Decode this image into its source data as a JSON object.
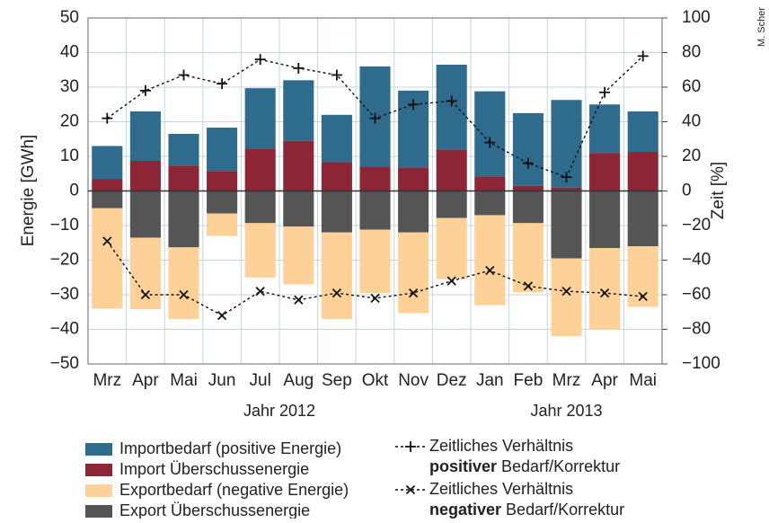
{
  "chart_data": {
    "type": "bar",
    "categories": [
      "Mrz",
      "Apr",
      "Mai",
      "Jun",
      "Jul",
      "Aug",
      "Sep",
      "Okt",
      "Nov",
      "Dez",
      "Jan",
      "Feb",
      "Mrz",
      "Apr",
      "Mai"
    ],
    "x_groups": [
      "Jahr 2012",
      "Jahr 2013"
    ],
    "ylabel": "Energie [GWh]",
    "y2label": "Zeit [%]",
    "credit": "M. Scher",
    "ylim": [
      -50,
      50
    ],
    "yticks": [
      {
        "value": -50,
        "label": "−50"
      },
      {
        "value": -40,
        "label": "−40"
      },
      {
        "value": -30,
        "label": "−30"
      },
      {
        "value": -20,
        "label": "−20"
      },
      {
        "value": -10,
        "label": "−10"
      },
      0,
      10,
      20,
      30,
      40,
      50
    ],
    "y2lim": [
      -100,
      100
    ],
    "y2ticks": [
      {
        "value": -100,
        "label": "−100"
      },
      {
        "value": -80,
        "label": "−80"
      },
      {
        "value": -60,
        "label": "−60"
      },
      {
        "value": -40,
        "label": "−40"
      },
      {
        "value": -20,
        "label": "−20"
      },
      0,
      20,
      40,
      60,
      80,
      100
    ],
    "grid": true,
    "series": [
      {
        "name": "Importbedarf (positive Energie)",
        "color": "#2f6b8c",
        "values": [
          9.5,
          14.3,
          9.2,
          12.5,
          17.4,
          17.5,
          13.7,
          29,
          22.2,
          24.5,
          24.6,
          21,
          25.3,
          14,
          11.7
        ]
      },
      {
        "name": "Import Überschussenergie",
        "color": "#8c2535",
        "values": [
          3.5,
          8.7,
          7.3,
          5.8,
          12.3,
          14.5,
          8.3,
          7,
          6.8,
          12,
          4.2,
          1.5,
          1,
          11,
          11.3
        ]
      },
      {
        "name": "Exportbedarf (negative Energie)",
        "color": "#fdd198",
        "values": [
          -29,
          -20.7,
          -20.7,
          -6.5,
          -15.7,
          -16.7,
          -25,
          -18.3,
          -23.3,
          -17.7,
          -26,
          -20,
          -22.5,
          -23.5,
          -17.5
        ]
      },
      {
        "name": "Export Überschussenergie",
        "color": "#555555",
        "values": [
          -5,
          -13.5,
          -16.3,
          -6.5,
          -9.3,
          -10.3,
          -12,
          -11.2,
          -12,
          -7.8,
          -7,
          -9.3,
          -19.5,
          -16.5,
          -16
        ]
      },
      {
        "name": "Zeitliches Verhältnis positiver Bedarf/Korrektur",
        "type": "line",
        "axis": "y2",
        "marker": "+",
        "color": "#111111",
        "values": [
          42,
          58,
          67,
          62,
          76,
          71,
          67,
          42,
          50,
          52,
          28,
          16,
          8,
          57,
          78
        ]
      },
      {
        "name": "Zeitliches Verhältnis negativer Bedarf/Korrektur",
        "type": "line",
        "axis": "y2",
        "marker": "x",
        "color": "#111111",
        "values": [
          -29,
          -60,
          -60,
          -72,
          -58,
          -63,
          -59,
          -62,
          -59,
          -52,
          -46,
          -55,
          -58,
          -59,
          -61
        ]
      }
    ]
  }
}
